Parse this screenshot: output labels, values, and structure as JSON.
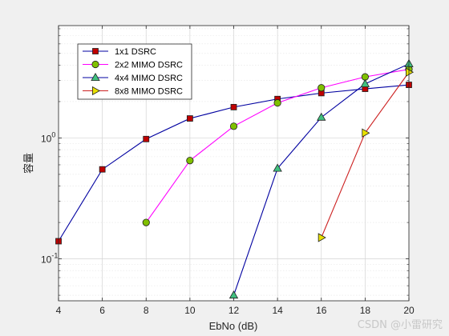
{
  "chart_data": {
    "type": "line",
    "xlabel": "EbNo (dB)",
    "ylabel": "容量",
    "xlim": [
      4,
      20
    ],
    "ylim": [
      0.045,
      8.5
    ],
    "yscale": "log",
    "x_ticks": [
      "4",
      "6",
      "8",
      "10",
      "12",
      "14",
      "16",
      "18",
      "20"
    ],
    "y_ticks": [
      {
        "value": 1,
        "base": "10",
        "exp": "0"
      },
      {
        "value": 0.1,
        "base": "10",
        "exp": "-1"
      }
    ],
    "grid": true,
    "minor_grid": true,
    "legend_position": "top-left",
    "series": [
      {
        "name": "1x1 DSRC",
        "color": "#0000a0",
        "marker": "square",
        "marker_fill": "#c00000",
        "x": [
          4,
          6,
          8,
          10,
          12,
          14,
          16,
          18,
          20
        ],
        "y": [
          0.14,
          0.55,
          0.98,
          1.45,
          1.8,
          2.1,
          2.35,
          2.55,
          2.75
        ]
      },
      {
        "name": "2x2 MIMO DSRC",
        "color": "#ff00ff",
        "marker": "circle",
        "marker_fill": "#80c000",
        "x": [
          8,
          10,
          12,
          14,
          16,
          18,
          20
        ],
        "y": [
          0.2,
          0.65,
          1.25,
          1.95,
          2.6,
          3.2,
          3.7
        ]
      },
      {
        "name": "4x4 MIMO DSRC",
        "color": "#0000a0",
        "marker": "triangle-up",
        "marker_fill": "#40c080",
        "x": [
          12,
          14,
          16,
          18,
          20
        ],
        "y": [
          0.05,
          0.56,
          1.48,
          2.8,
          4.1
        ]
      },
      {
        "name": "8x8 MIMO DSRC",
        "color": "#cc2020",
        "marker": "triangle-right",
        "marker_fill": "#e8e000",
        "x": [
          16,
          18,
          20
        ],
        "y": [
          0.15,
          1.1,
          3.5
        ]
      }
    ]
  },
  "watermark": "CSDN @小雷研究"
}
